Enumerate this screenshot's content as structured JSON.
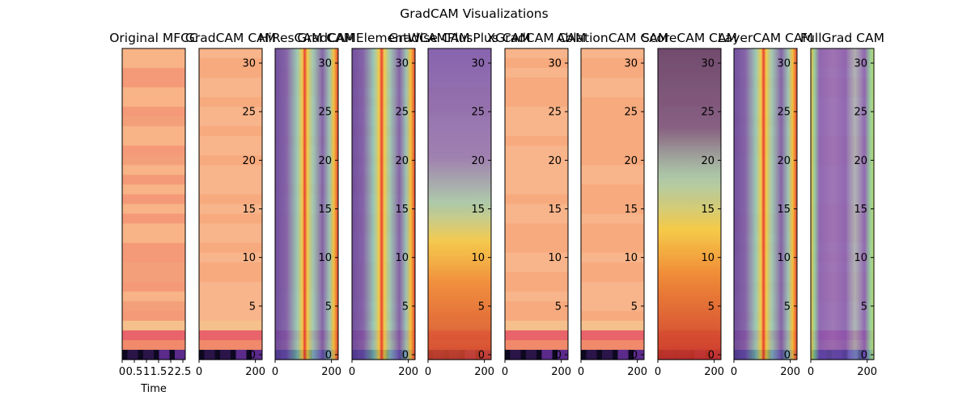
{
  "figure": {
    "title": "GradCAM Visualizations"
  },
  "chart_data": [
    {
      "type": "heatmap",
      "title": "Original MFCC",
      "xlabel": "Time",
      "xticks": [
        "0",
        "0.5",
        "1",
        "1.5",
        "2",
        "2.5"
      ],
      "xlim": [
        0,
        2.6
      ],
      "ylim": [
        -0.5,
        31.5
      ],
      "yticks": [],
      "colormap": "magma-like MFCC",
      "colors": {
        "base": "#f7ab7a",
        "hot": "#e5576a",
        "dark": "#1a0f2e"
      }
    },
    {
      "type": "heatmap",
      "title": "GradCAM CAM",
      "xlabel": "",
      "xticks": [
        "0",
        "200"
      ],
      "xlim": [
        0,
        224
      ],
      "yticks": [
        "0",
        "5",
        "10",
        "15",
        "20",
        "25",
        "30"
      ],
      "ylim": [
        -0.5,
        31.5
      ],
      "overlay": "faint uniform",
      "colors": {
        "base": "#f7ab7a"
      }
    },
    {
      "type": "heatmap",
      "title": "HiResCAM CAM",
      "xlabel": "",
      "xticks": [
        "0",
        "200"
      ],
      "xlim": [
        0,
        224
      ],
      "yticks": [
        "0",
        "5",
        "10",
        "15",
        "20",
        "25",
        "30"
      ],
      "ylim": [
        -0.5,
        31.5
      ],
      "overlay": "vertical stripes, hot near x~100 and x~210",
      "colors": {
        "low": "#6b4fb0",
        "mid": "#6fd0b0",
        "high": "#e8342a"
      }
    },
    {
      "type": "heatmap",
      "title": "GradCAMElementWise CAM",
      "xlabel": "",
      "xticks": [
        "0",
        "200"
      ],
      "xlim": [
        0,
        224
      ],
      "yticks": [
        "0",
        "5",
        "10",
        "15",
        "20",
        "25",
        "30"
      ],
      "ylim": [
        -0.5,
        31.5
      ],
      "overlay": "vertical stripes, hot near x~100 and x~210",
      "colors": {
        "low": "#6b4fb0",
        "mid": "#6fd0b0",
        "high": "#e8342a"
      }
    },
    {
      "type": "heatmap",
      "title": "GradCAMPlusPlus CAM",
      "xlabel": "",
      "xticks": [
        "0",
        "200"
      ],
      "xlim": [
        0,
        224
      ],
      "yticks": [
        "0",
        "5",
        "10",
        "15",
        "20",
        "25",
        "30"
      ],
      "ylim": [
        -0.5,
        31.5
      ],
      "overlay": "bottom-heavy blob, hot below y~10",
      "colors": {
        "low": "#7a5cc0",
        "mid": "#f4d03f",
        "high": "#e0402a"
      }
    },
    {
      "type": "heatmap",
      "title": "XGradCAM CAM",
      "xlabel": "",
      "xticks": [
        "0",
        "200"
      ],
      "xlim": [
        0,
        224
      ],
      "yticks": [
        "0",
        "5",
        "10",
        "15",
        "20",
        "25",
        "30"
      ],
      "ylim": [
        -0.5,
        31.5
      ],
      "overlay": "faint uniform",
      "colors": {
        "base": "#f7ab7a"
      }
    },
    {
      "type": "heatmap",
      "title": "AblationCAM CAM",
      "xlabel": "",
      "xticks": [
        "0",
        "200"
      ],
      "xlim": [
        0,
        224
      ],
      "yticks": [
        "0",
        "5",
        "10",
        "15",
        "20",
        "25",
        "30"
      ],
      "ylim": [
        -0.5,
        31.5
      ],
      "overlay": "faint uniform",
      "colors": {
        "base": "#f7ab7a"
      }
    },
    {
      "type": "heatmap",
      "title": "ScoreCAM CAM",
      "xlabel": "",
      "xticks": [
        "0",
        "200"
      ],
      "xlim": [
        0,
        224
      ],
      "yticks": [
        "0",
        "5",
        "10",
        "15",
        "20",
        "25",
        "30"
      ],
      "ylim": [
        -0.5,
        31.5
      ],
      "overlay": "bottom-heavy blob, hot below y~12, dark top",
      "colors": {
        "low": "#6b4a7a",
        "mid": "#f4d03f",
        "high": "#e0402a"
      }
    },
    {
      "type": "heatmap",
      "title": "LayerCAM CAM",
      "xlabel": "",
      "xticks": [
        "0",
        "200"
      ],
      "xlim": [
        0,
        224
      ],
      "yticks": [
        "0",
        "5",
        "10",
        "15",
        "20",
        "25",
        "30"
      ],
      "ylim": [
        -0.5,
        31.5
      ],
      "overlay": "vertical stripes, hot near x~100 and x~210",
      "colors": {
        "low": "#6b4fb0",
        "mid": "#6fd0b0",
        "high": "#e8342a"
      }
    },
    {
      "type": "heatmap",
      "title": "FullGrad CAM",
      "xlabel": "",
      "xticks": [
        "0",
        "200"
      ],
      "xlim": [
        0,
        224
      ],
      "yticks": [
        "0",
        "5",
        "10",
        "15",
        "20",
        "25",
        "30"
      ],
      "ylim": [
        -0.5,
        31.5
      ],
      "overlay": "mostly low with bright edges at x~0 and x~224",
      "colors": {
        "low": "#6f4fc0",
        "mid": "#7fd6a0",
        "high": "#f2c230"
      }
    }
  ]
}
